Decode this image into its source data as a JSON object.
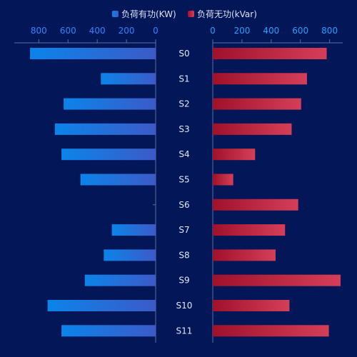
{
  "colors": {
    "background": "#031657",
    "axis": "#5d6f9d",
    "active_left": "#0b84ea",
    "active_right": "#3c5ac8",
    "reactive_left": "#a0112b",
    "reactive_right": "#d53e58",
    "left_tick": "#2f86ff",
    "right_tick": "#1ea2ff",
    "category_text": "#dfe8fb",
    "legend_text": "#d8e2f5"
  },
  "chart_data": {
    "type": "bar",
    "title": "",
    "categories": [
      "S0",
      "S1",
      "S2",
      "S3",
      "S4",
      "S5",
      "S6",
      "S7",
      "S8",
      "S9",
      "S10",
      "S11"
    ],
    "legend": [
      "负荷有功(KW)",
      "负荷无功(kVar)"
    ],
    "legend_position": "top-center",
    "grid": false,
    "left_axis": {
      "ticks": [
        800,
        600,
        400,
        200,
        0
      ],
      "range": [
        0,
        880
      ],
      "direction": "reversed"
    },
    "right_axis": {
      "ticks": [
        0,
        200,
        400,
        600,
        800
      ],
      "range": [
        0,
        880
      ]
    },
    "series": [
      {
        "name": "负荷有功(KW)",
        "side": "left",
        "values": [
          860,
          375,
          630,
          690,
          645,
          515,
          0,
          300,
          355,
          485,
          740,
          645
        ]
      },
      {
        "name": "负荷无功(kVar)",
        "side": "right",
        "values": [
          780,
          645,
          605,
          540,
          290,
          140,
          585,
          495,
          430,
          875,
          525,
          795
        ]
      }
    ]
  }
}
